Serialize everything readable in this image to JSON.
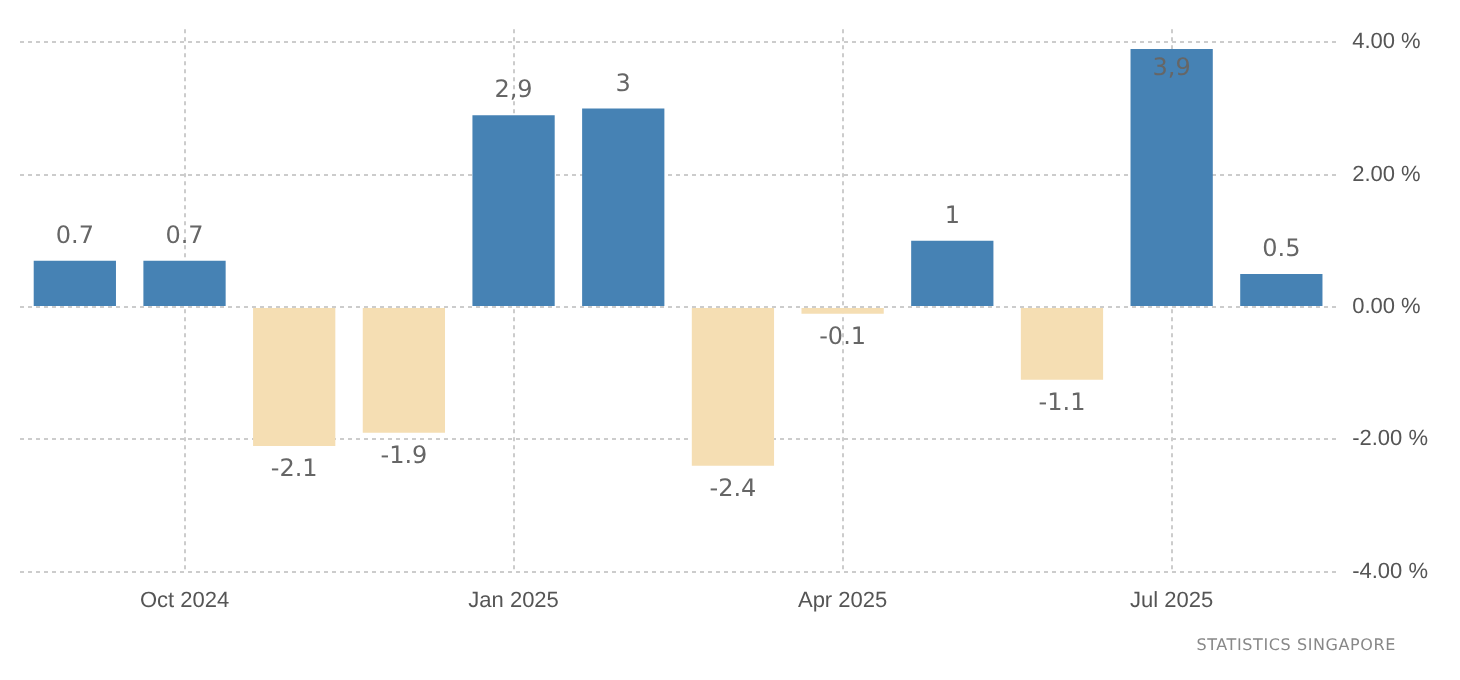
{
  "chart_data": {
    "type": "bar",
    "categories": [
      null,
      "Oct 2024",
      null,
      null,
      "Jan 2025",
      null,
      null,
      "Apr 2025",
      null,
      null,
      "Jul 2025",
      null
    ],
    "values": [
      0.7,
      0.7,
      -2.1,
      -1.9,
      2.9,
      3,
      -2.4,
      -0.1,
      1,
      -1.1,
      3.9,
      0.5
    ],
    "colors": [
      "#4682b4",
      "#4682b4",
      "#f5deb3",
      "#f5deb3",
      "#4682b4",
      "#4682b4",
      "#f5deb3",
      "#f5deb3",
      "#4682b4",
      "#f5deb3",
      "#4682b4",
      "#4682b4"
    ],
    "value_labels": [
      "0.7",
      "0.7",
      "-2.1",
      "-1.9",
      "2,9",
      "3",
      "-2.4",
      "-0.1",
      "1",
      "-1.1",
      "3,9",
      "0.5"
    ],
    "ylim": [
      -4,
      4.2
    ],
    "yticks": [
      {
        "value": -4,
        "label": "-4.00 %"
      },
      {
        "value": -2,
        "label": "-2.00 %"
      },
      {
        "value": 0,
        "label": "0.00 %"
      },
      {
        "value": 2,
        "label": "2.00 %"
      },
      {
        "value": 4,
        "label": "4.00 %"
      }
    ],
    "grid": true,
    "legend": false,
    "annotations": [
      "STATISTICS SINGAPORE"
    ]
  }
}
